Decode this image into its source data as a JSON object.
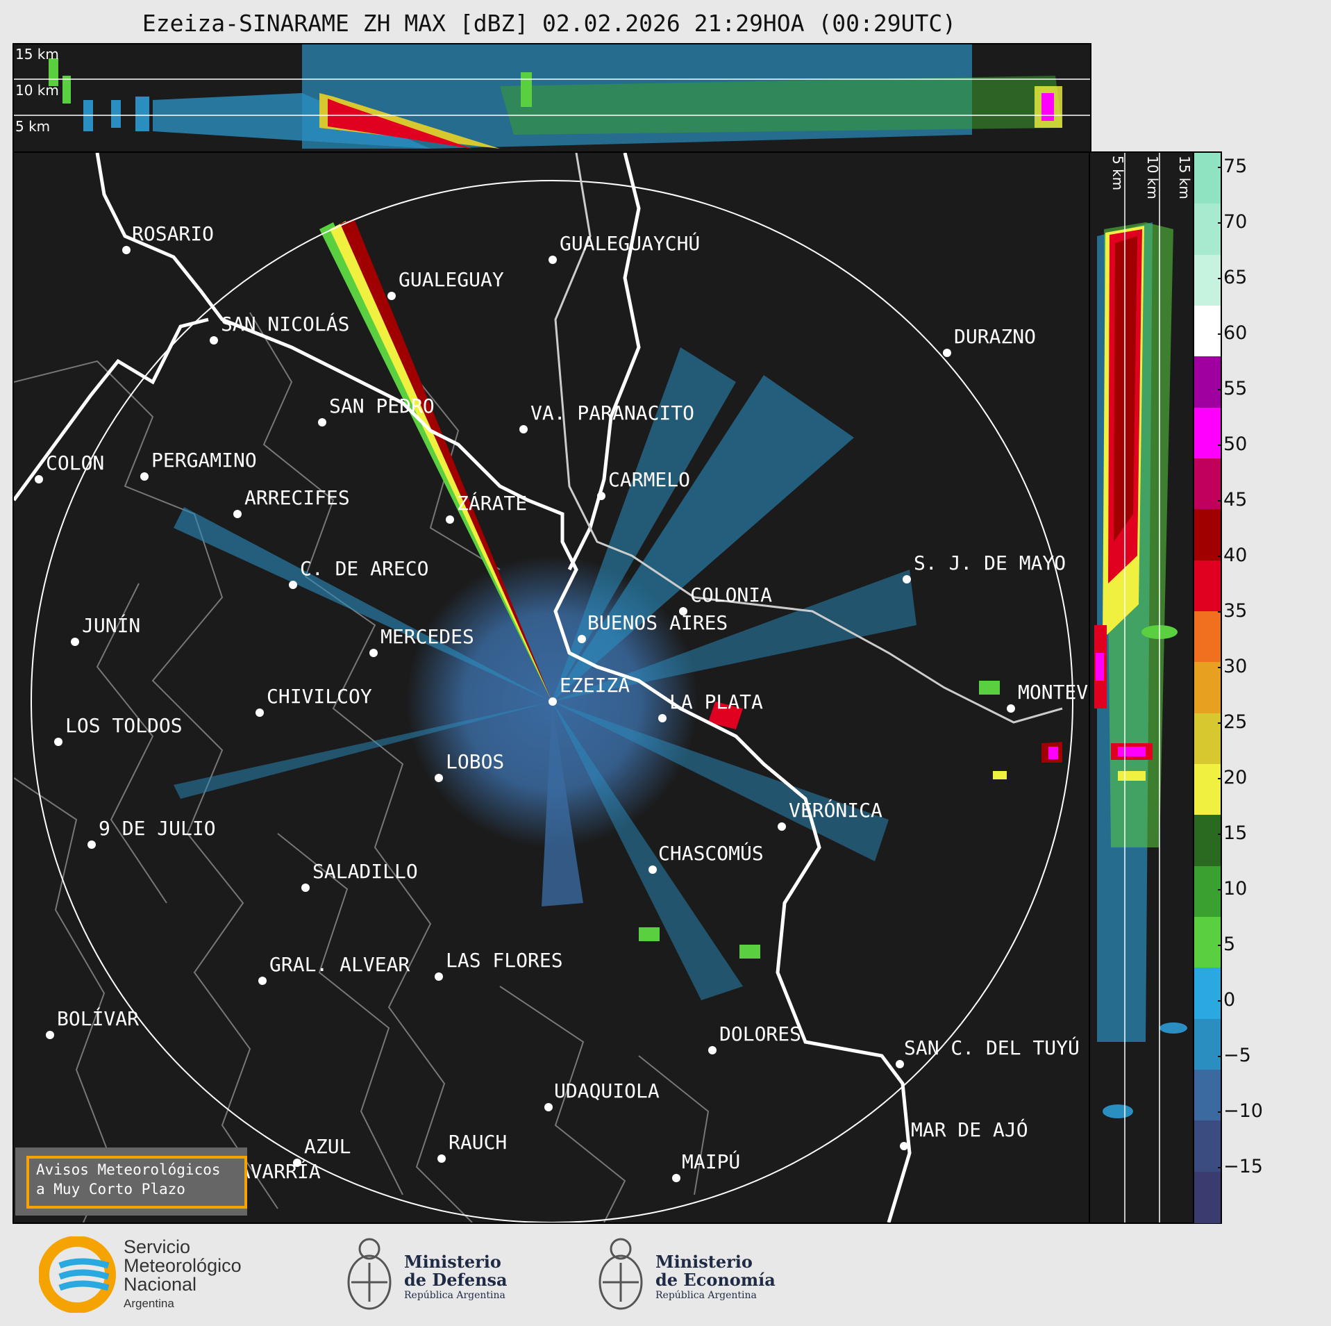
{
  "title": "Ezeiza-SINARAME ZH MAX [dBZ] 02.02.2026 21:29HOA (00:29UTC)",
  "top_panel_labels": [
    "15 km",
    "10 km",
    "5 km"
  ],
  "side_panel_labels": [
    "5 km",
    "10 km",
    "15 km"
  ],
  "colorbar": {
    "unit": "dBZ",
    "ticks": [
      "75",
      "70",
      "65",
      "60",
      "55",
      "50",
      "45",
      "40",
      "35",
      "30",
      "25",
      "20",
      "15",
      "10",
      "5",
      "0",
      "−5",
      "−10",
      "−15"
    ],
    "colors": [
      "#8fe3c0",
      "#a8ead0",
      "#c6f2e0",
      "#ffffff",
      "#a000a0",
      "#ff00ff",
      "#c0005a",
      "#a00000",
      "#e00020",
      "#f07020",
      "#e8a020",
      "#d8c830",
      "#f0f040",
      "#2a6a20",
      "#3aa030",
      "#5ad040",
      "#2aa8e0",
      "#2a8ec0",
      "#3a6aa0",
      "#3a4c80",
      "#3a3c70"
    ]
  },
  "cities": [
    {
      "name": "ROSARIO"
    },
    {
      "name": "GUALEGUAYCHÚ"
    },
    {
      "name": "GUALEGUAY"
    },
    {
      "name": "SAN NICOLÁS"
    },
    {
      "name": "DURAZNO"
    },
    {
      "name": "SAN PEDRO"
    },
    {
      "name": "VA. PARANACITO"
    },
    {
      "name": "COLON"
    },
    {
      "name": "PERGAMINO"
    },
    {
      "name": "CARMELO"
    },
    {
      "name": "ARRECIFES"
    },
    {
      "name": "ZÁRATE"
    },
    {
      "name": "S. J. DE MAYO"
    },
    {
      "name": "C. DE ARECO"
    },
    {
      "name": "COLONIA"
    },
    {
      "name": "JUNÍN"
    },
    {
      "name": "BUENOS AIRES"
    },
    {
      "name": "MERCEDES"
    },
    {
      "name": "EZEIZA"
    },
    {
      "name": "MONTEV"
    },
    {
      "name": "CHIVILCOY"
    },
    {
      "name": "LA PLATA"
    },
    {
      "name": "LOS TOLDOS"
    },
    {
      "name": "LOBOS"
    },
    {
      "name": "VERÓNICA"
    },
    {
      "name": "9 DE JULIO"
    },
    {
      "name": "CHASCOMÚS"
    },
    {
      "name": "SALADILLO"
    },
    {
      "name": "GRAL. ALVEAR"
    },
    {
      "name": "LAS FLORES"
    },
    {
      "name": "BOLÍVAR"
    },
    {
      "name": "DOLORES"
    },
    {
      "name": "SAN C. DEL TUYÚ"
    },
    {
      "name": "UDAQUIOLA"
    },
    {
      "name": "RAUCH"
    },
    {
      "name": "AZUL"
    },
    {
      "name": "MAR DE AJÓ"
    },
    {
      "name": "OLAVARRÍA"
    },
    {
      "name": "MAIPÚ"
    }
  ],
  "avisos": {
    "line1": "Avisos Meteorológicos",
    "line2": "a Muy Corto Plazo"
  },
  "footer": {
    "smn": {
      "line1": "Servicio",
      "line2": "Meteorológico",
      "line3": "Nacional",
      "line4": "Argentina"
    },
    "defensa": {
      "line1": "Ministerio",
      "line2": "de Defensa",
      "line3": "República Argentina"
    },
    "economia": {
      "line1": "Ministerio",
      "line2": "de Economía",
      "line3": "República Argentina"
    }
  }
}
